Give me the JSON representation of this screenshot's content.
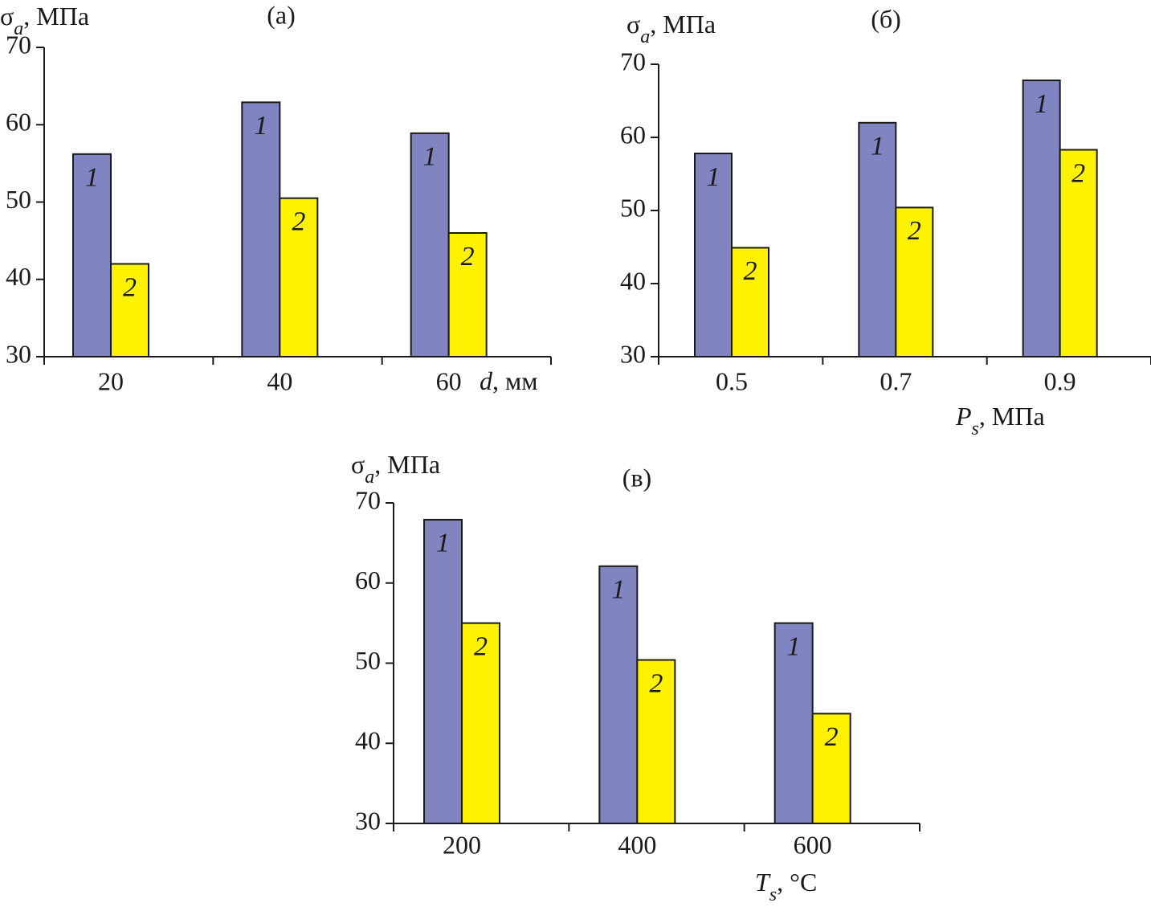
{
  "chart_data": [
    {
      "type": "bar",
      "title": "(a)",
      "y_label": [
        {
          "text": "σ"
        },
        {
          "text": "a",
          "italic": true,
          "sub": true
        },
        {
          "text": ", МПа"
        }
      ],
      "x_label": [
        {
          "text": "d",
          "italic": true
        },
        {
          "text": ", мм"
        }
      ],
      "categories": [
        "20",
        "40",
        "60"
      ],
      "series": [
        {
          "name": "1",
          "color": "#8084c0",
          "values": [
            56.2,
            62.9,
            58.9
          ]
        },
        {
          "name": "2",
          "color": "#fff200",
          "values": [
            42,
            50.5,
            46
          ]
        }
      ],
      "ylim": [
        30,
        70
      ],
      "yticks": [
        30,
        40,
        50,
        60,
        70
      ]
    },
    {
      "type": "bar",
      "title": "(б)",
      "y_label": [
        {
          "text": "σ"
        },
        {
          "text": "a",
          "italic": true,
          "sub": true
        },
        {
          "text": ", МПа"
        }
      ],
      "x_label": [
        {
          "text": "P",
          "italic": true
        },
        {
          "text": "s",
          "italic": true,
          "sub": true
        },
        {
          "text": ", МПа"
        }
      ],
      "categories": [
        "0.5",
        "0.7",
        "0.9"
      ],
      "series": [
        {
          "name": "1",
          "color": "#8084c0",
          "values": [
            57.8,
            62,
            67.8
          ]
        },
        {
          "name": "2",
          "color": "#fff200",
          "values": [
            44.9,
            50.4,
            58.3
          ]
        }
      ],
      "ylim": [
        30,
        70
      ],
      "yticks": [
        30,
        40,
        50,
        60,
        70
      ]
    },
    {
      "type": "bar",
      "title": "(в)",
      "y_label": [
        {
          "text": "σ"
        },
        {
          "text": "a",
          "italic": true,
          "sub": true
        },
        {
          "text": ", МПа"
        }
      ],
      "x_label": [
        {
          "text": "T",
          "italic": true
        },
        {
          "text": "s",
          "italic": true,
          "sub": true
        },
        {
          "text": ", °C"
        }
      ],
      "categories": [
        "200",
        "400",
        "600"
      ],
      "series": [
        {
          "name": "1",
          "color": "#8084c0",
          "values": [
            67.9,
            62.1,
            55
          ]
        },
        {
          "name": "2",
          "color": "#fff200",
          "values": [
            55,
            50.4,
            43.7
          ]
        }
      ],
      "ylim": [
        30,
        70
      ],
      "yticks": [
        30,
        40,
        50,
        60,
        70
      ]
    }
  ]
}
